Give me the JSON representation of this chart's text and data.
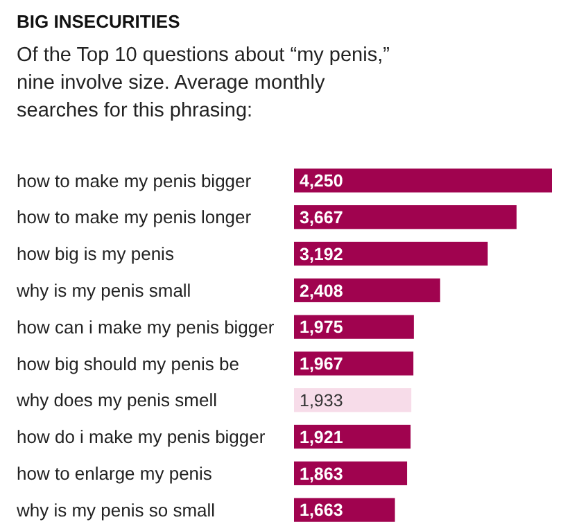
{
  "chart_data": {
    "type": "bar",
    "orientation": "horizontal",
    "title": "BIG INSECURITIES",
    "subtitle": "Of the Top 10 questions about “my penis,” nine involve size. Average monthly searches for this phrasing:",
    "categories": [
      "how to make my penis bigger",
      "how to make my penis longer",
      "how big is my penis",
      "why is my penis small",
      "how can i make my penis bigger",
      "how big should my penis be",
      "why does my penis smell",
      "how do i make my penis bigger",
      "how to enlarge my penis",
      "why is my penis so small"
    ],
    "values": [
      4250,
      3667,
      3192,
      2408,
      1975,
      1967,
      1933,
      1921,
      1863,
      1663
    ],
    "colors": [
      "#a0034f",
      "#a0034f",
      "#a0034f",
      "#a0034f",
      "#a0034f",
      "#a0034f",
      "#f7dce9",
      "#a0034f",
      "#a0034f",
      "#a0034f"
    ],
    "value_labels": [
      "4,250",
      "3,667",
      "3,192",
      "2,408",
      "1,975",
      "1,967",
      "1,933",
      "1,921",
      "1,863",
      "1,663"
    ]
  }
}
